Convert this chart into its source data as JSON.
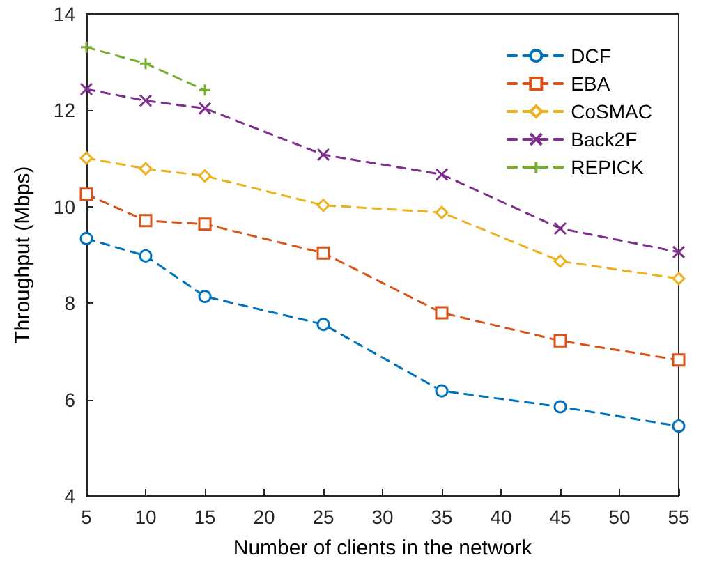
{
  "chart_data": {
    "type": "line",
    "xlabel": "Number of clients in the network",
    "ylabel": "Throughput (Mbps)",
    "x": [
      5,
      10,
      15,
      25,
      35,
      45,
      55
    ],
    "series": [
      {
        "name": "DCF",
        "color": "#0072bd",
        "marker": "circle",
        "values": [
          9.34,
          8.98,
          8.14,
          7.56,
          6.18,
          5.85,
          5.45
        ]
      },
      {
        "name": "EBA",
        "color": "#d95319",
        "marker": "square",
        "values": [
          10.26,
          9.71,
          9.64,
          9.04,
          7.8,
          7.22,
          6.82
        ]
      },
      {
        "name": "CoSMAC",
        "color": "#edb120",
        "marker": "diamond",
        "values": [
          11.01,
          10.79,
          10.64,
          10.03,
          9.88,
          8.87,
          8.51
        ]
      },
      {
        "name": "Back2F",
        "color": "#7e2f8e",
        "marker": "cross",
        "values": [
          12.44,
          12.2,
          12.04,
          11.08,
          10.67,
          9.55,
          9.06
        ]
      },
      {
        "name": "REPICK",
        "color": "#77ac30",
        "marker": "plus",
        "values": [
          13.31,
          12.97,
          12.42,
          null,
          null,
          null,
          null
        ]
      }
    ],
    "xlim": [
      5,
      55
    ],
    "xticks": [
      5,
      10,
      15,
      20,
      25,
      30,
      35,
      40,
      45,
      50,
      55
    ],
    "ylim": [
      4,
      14
    ],
    "yticks": [
      4,
      6,
      8,
      10,
      12,
      14
    ],
    "grid": false,
    "legend": "top right",
    "line_style": "dashed"
  }
}
